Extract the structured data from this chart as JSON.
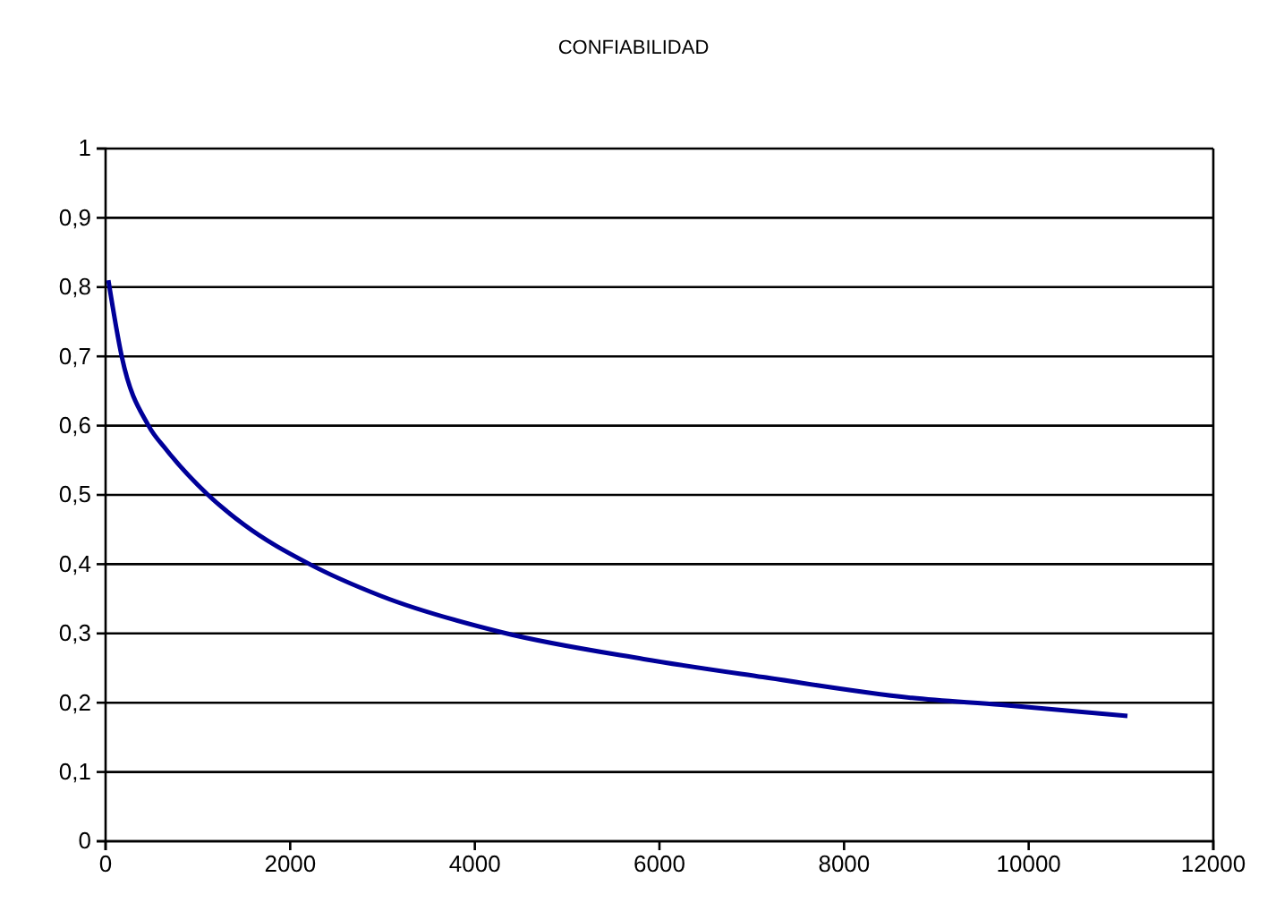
{
  "chart_data": {
    "type": "line",
    "title": "CONFIABILIDAD",
    "x": [
      30,
      175,
      465,
      660,
      1110,
      1500,
      2210,
      2985,
      4280,
      5830,
      7120,
      8735,
      9700,
      11070
    ],
    "series": [
      {
        "color": "#000099",
        "values": [
          0.81,
          0.7,
          0.6,
          0.565,
          0.5,
          0.457,
          0.4,
          0.354,
          0.302,
          0.263,
          0.237,
          0.207,
          0.197,
          0.181
        ]
      }
    ],
    "xlim": [
      0,
      12000
    ],
    "xticks": [
      0,
      2000,
      4000,
      6000,
      8000,
      10000,
      12000
    ],
    "ylim": [
      0,
      1
    ],
    "yticks": [
      0,
      {
        "value": 0.1,
        "label": "0,1"
      },
      {
        "value": 0.2,
        "label": "0,2"
      },
      {
        "value": 0.3,
        "label": "0,3"
      },
      {
        "value": 0.4,
        "label": "0,4"
      },
      {
        "value": 0.5,
        "label": "0,5"
      },
      {
        "value": 0.6,
        "label": "0,6"
      },
      {
        "value": 0.7,
        "label": "0,7"
      },
      {
        "value": 0.8,
        "label": "0,8"
      },
      {
        "value": 0.9,
        "label": "0,9"
      },
      1
    ],
    "grid": "y",
    "marker": "none",
    "line_style": "solid"
  }
}
